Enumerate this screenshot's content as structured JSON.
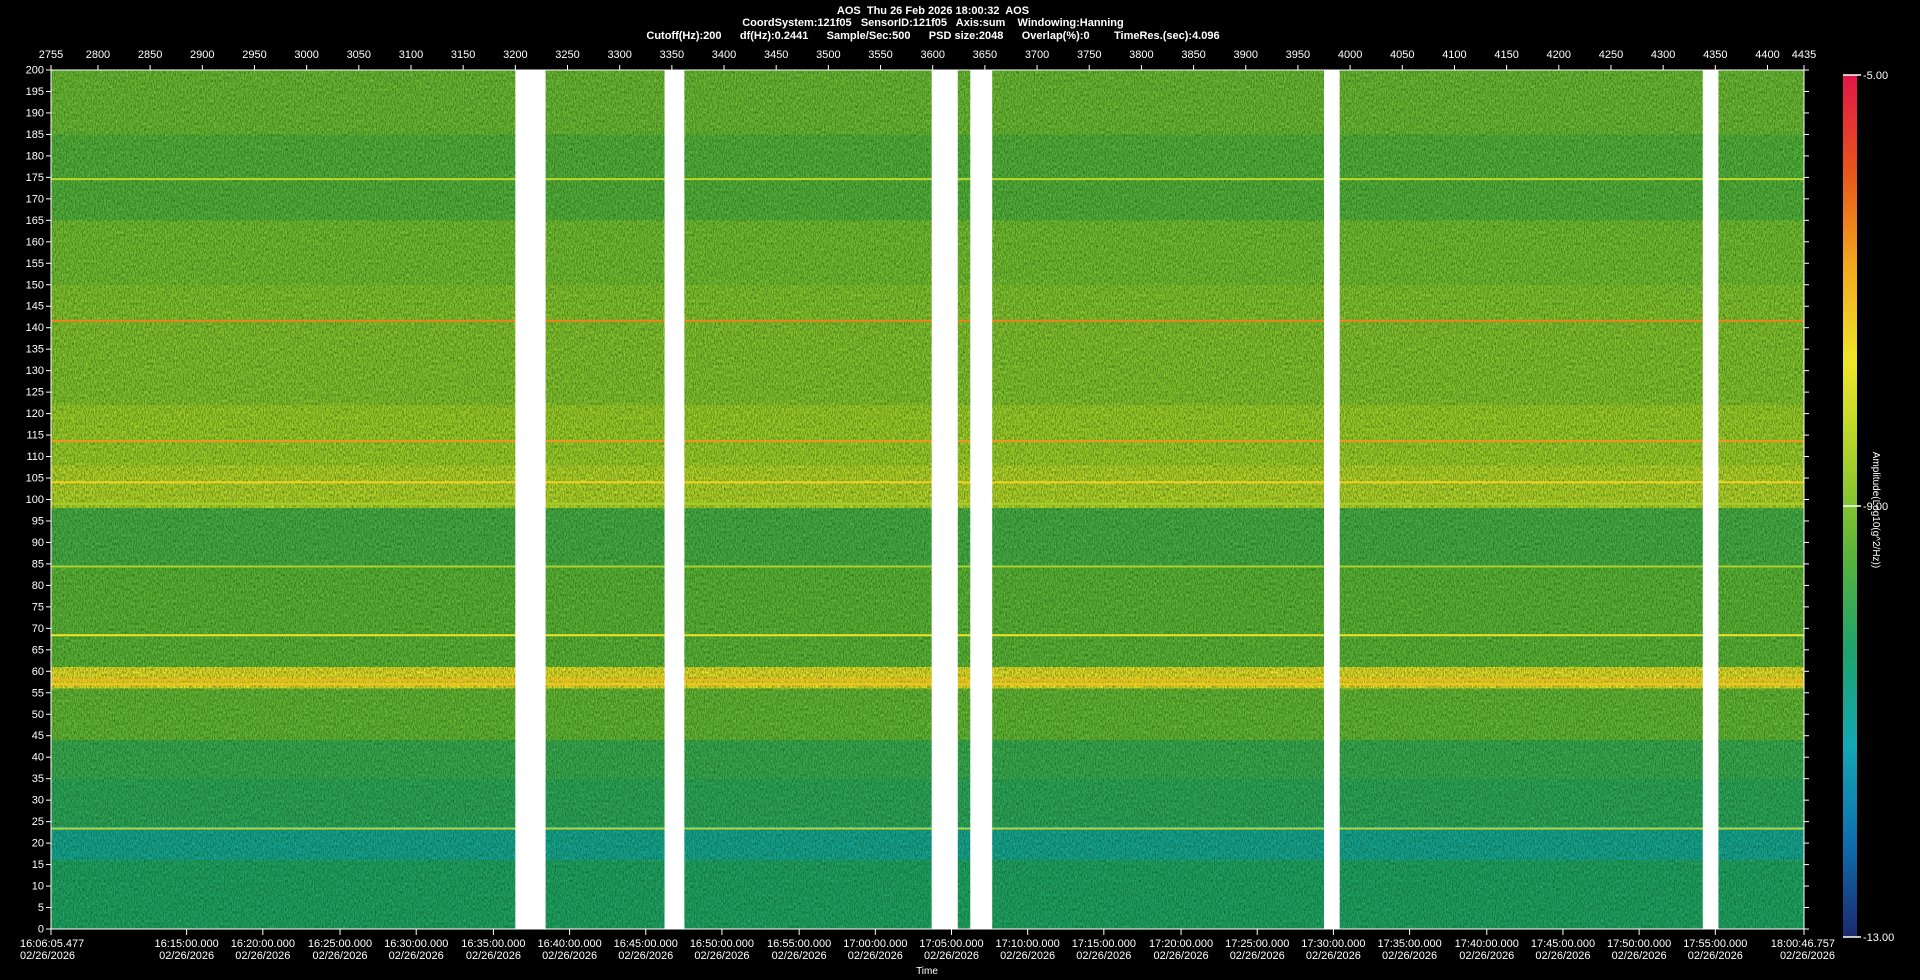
{
  "header": {
    "line1": "AOS  Thu 26 Feb 2026 18:00:32  AOS",
    "line2": "CoordSystem:121f05   SensorID:121f05   Axis:sum    Windowing:Hanning",
    "line3": "Cutoff(Hz):200      df(Hz):0.2441      Sample/Sec:500      PSD size:2048      Overlap(%):0        TimeRes.(sec):4.096"
  },
  "chart_data": {
    "type": "heatmap",
    "title": "AOS  Thu 26 Feb 2026 18:00:32  AOS",
    "xlabel": "Time",
    "colorbar_label": "Amplitude(Log10(g^2/Hz))",
    "y_range": [
      0,
      200
    ],
    "y_ticks": [
      0,
      5,
      10,
      15,
      20,
      25,
      30,
      35,
      40,
      45,
      50,
      55,
      60,
      65,
      70,
      75,
      80,
      85,
      90,
      95,
      100,
      105,
      110,
      115,
      120,
      125,
      130,
      135,
      140,
      145,
      150,
      155,
      160,
      165,
      170,
      175,
      180,
      185,
      190,
      195,
      200
    ],
    "top_axis_range": [
      2755,
      4435
    ],
    "top_ticks": [
      2755,
      2800,
      2850,
      2900,
      2950,
      3000,
      3050,
      3100,
      3150,
      3200,
      3250,
      3300,
      3350,
      3400,
      3450,
      3500,
      3550,
      3600,
      3650,
      3700,
      3750,
      3800,
      3850,
      3900,
      3950,
      4000,
      4050,
      4100,
      4150,
      4200,
      4250,
      4300,
      4350,
      4400,
      4435
    ],
    "time_ticks": [
      {
        "i": 2755,
        "time": "16:06:05.477",
        "date": "02/26/2026"
      },
      {
        "i": 2885,
        "time": "16:15:00.000",
        "date": "02/26/2026"
      },
      {
        "i": 2958,
        "time": "16:20:00.000",
        "date": "02/26/2026"
      },
      {
        "i": 3032,
        "time": "16:25:00.000",
        "date": "02/26/2026"
      },
      {
        "i": 3105,
        "time": "16:30:00.000",
        "date": "02/26/2026"
      },
      {
        "i": 3179,
        "time": "16:35:00.000",
        "date": "02/26/2026"
      },
      {
        "i": 3252,
        "time": "16:40:00.000",
        "date": "02/26/2026"
      },
      {
        "i": 3325,
        "time": "16:45:00.000",
        "date": "02/26/2026"
      },
      {
        "i": 3398,
        "time": "16:50:00.000",
        "date": "02/26/2026"
      },
      {
        "i": 3472,
        "time": "16:55:00.000",
        "date": "02/26/2026"
      },
      {
        "i": 3545,
        "time": "17:00:00.000",
        "date": "02/26/2026"
      },
      {
        "i": 3618,
        "time": "17:05:00.000",
        "date": "02/26/2026"
      },
      {
        "i": 3691,
        "time": "17:10:00.000",
        "date": "02/26/2026"
      },
      {
        "i": 3764,
        "time": "17:15:00.000",
        "date": "02/26/2026"
      },
      {
        "i": 3838,
        "time": "17:20:00.000",
        "date": "02/26/2026"
      },
      {
        "i": 3911,
        "time": "17:25:00.000",
        "date": "02/26/2026"
      },
      {
        "i": 3984,
        "time": "17:30:00.000",
        "date": "02/26/2026"
      },
      {
        "i": 4057,
        "time": "17:35:00.000",
        "date": "02/26/2026"
      },
      {
        "i": 4131,
        "time": "17:40:00.000",
        "date": "02/26/2026"
      },
      {
        "i": 4204,
        "time": "17:45:00.000",
        "date": "02/26/2026"
      },
      {
        "i": 4277,
        "time": "17:50:00.000",
        "date": "02/26/2026"
      },
      {
        "i": 4350,
        "time": "17:55:00.000",
        "date": "02/26/2026"
      },
      {
        "i": 4435,
        "time": "18:00:46.757",
        "date": "02/26/2026"
      }
    ],
    "colorbar": {
      "max": -5.0,
      "mid": -9.0,
      "min": -13.0,
      "max_label": "-5.00",
      "mid_label": "-9.00",
      "min_label": "-13.00",
      "colors": [
        "#1a2a6e",
        "#0f6fae",
        "#13a8b4",
        "#1fa36c",
        "#5cb33a",
        "#a9d12a",
        "#f0e62a",
        "#f3a81d",
        "#e8541b",
        "#e0164a"
      ]
    },
    "gaps": [
      [
        3200,
        3229
      ],
      [
        3343,
        3362
      ],
      [
        3599,
        3624
      ],
      [
        3636,
        3657
      ],
      [
        3975,
        3990
      ],
      [
        4338,
        4353
      ]
    ],
    "bands": [
      {
        "f0": 0,
        "f1": 16,
        "level": -10.3
      },
      {
        "f0": 16,
        "f1": 24,
        "level": -10.9
      },
      {
        "f0": 24,
        "f1": 35,
        "level": -10.1
      },
      {
        "f0": 35,
        "f1": 44,
        "level": -9.9
      },
      {
        "f0": 44,
        "f1": 56,
        "level": -9.3
      },
      {
        "f0": 56,
        "f1": 61,
        "level": -7.6
      },
      {
        "f0": 61,
        "f1": 84,
        "level": -9.4
      },
      {
        "f0": 84,
        "f1": 98,
        "level": -9.7
      },
      {
        "f0": 98,
        "f1": 108,
        "level": -8.3
      },
      {
        "f0": 108,
        "f1": 122,
        "level": -8.6
      },
      {
        "f0": 122,
        "f1": 150,
        "level": -8.9
      },
      {
        "f0": 150,
        "f1": 165,
        "level": -9.1
      },
      {
        "f0": 165,
        "f1": 185,
        "level": -9.5
      },
      {
        "f0": 185,
        "f1": 200,
        "level": -9.2
      }
    ],
    "lines": [
      {
        "f": 141.6,
        "level": -6.4
      },
      {
        "f": 113.6,
        "level": -6.6
      },
      {
        "f": 104.0,
        "level": -7.4
      },
      {
        "f": 68.4,
        "level": -7.6
      },
      {
        "f": 58.0,
        "level": -6.9
      },
      {
        "f": 57.0,
        "level": -7.2
      },
      {
        "f": 23.4,
        "level": -8.3
      },
      {
        "f": 174.6,
        "level": -8.3
      },
      {
        "f": 84.4,
        "level": -8.5
      },
      {
        "f": 99.0,
        "level": -8.6
      }
    ]
  }
}
